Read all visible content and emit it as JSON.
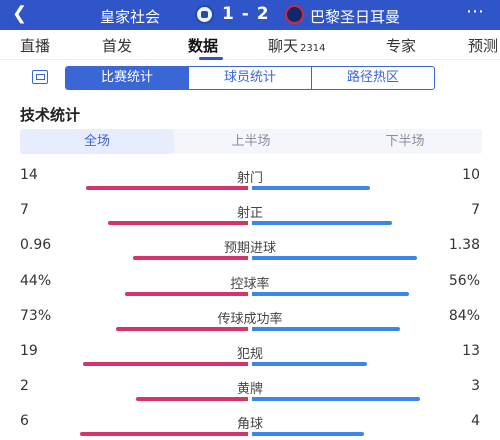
{
  "header": {
    "back_icon": "back-arrow-icon",
    "home_team": "皇家社会",
    "score": "1 - 2",
    "away_team": "巴黎圣日耳曼",
    "more_icon": "more-icon",
    "colors": {
      "background": "#2f55c9"
    }
  },
  "tabs": [
    {
      "label": "直播",
      "count": ""
    },
    {
      "label": "首发",
      "count": ""
    },
    {
      "label": "数据",
      "count": "",
      "active": true
    },
    {
      "label": "聊天",
      "count": "2314"
    },
    {
      "label": "专家",
      "count": ""
    },
    {
      "label": "预测",
      "count": ""
    }
  ],
  "sub_tabs": [
    "比赛统计",
    "球员统计",
    "路径热区"
  ],
  "section_title": "技术统计",
  "periods": [
    "全场",
    "上半场",
    "下半场"
  ],
  "stats": [
    {
      "label": "射门",
      "home": "14",
      "away": "10",
      "home_frac": 0.58,
      "away_frac": 0.42
    },
    {
      "label": "射正",
      "home": "7",
      "away": "7",
      "home_frac": 0.5,
      "away_frac": 0.5
    },
    {
      "label": "预期进球",
      "home": "0.96",
      "away": "1.38",
      "home_frac": 0.41,
      "away_frac": 0.59
    },
    {
      "label": "控球率",
      "home": "44%",
      "away": "56%",
      "home_frac": 0.44,
      "away_frac": 0.56
    },
    {
      "label": "传球成功率",
      "home": "73%",
      "away": "84%",
      "home_frac": 0.47,
      "away_frac": 0.53
    },
    {
      "label": "犯规",
      "home": "19",
      "away": "13",
      "home_frac": 0.59,
      "away_frac": 0.41
    },
    {
      "label": "黄牌",
      "home": "2",
      "away": "3",
      "home_frac": 0.4,
      "away_frac": 0.6
    },
    {
      "label": "角球",
      "home": "6",
      "away": "4",
      "home_frac": 0.6,
      "away_frac": 0.4
    }
  ],
  "colors": {
    "home_bar": "#d6336c",
    "away_bar": "#3b86e8",
    "accent": "#3b66d6"
  }
}
